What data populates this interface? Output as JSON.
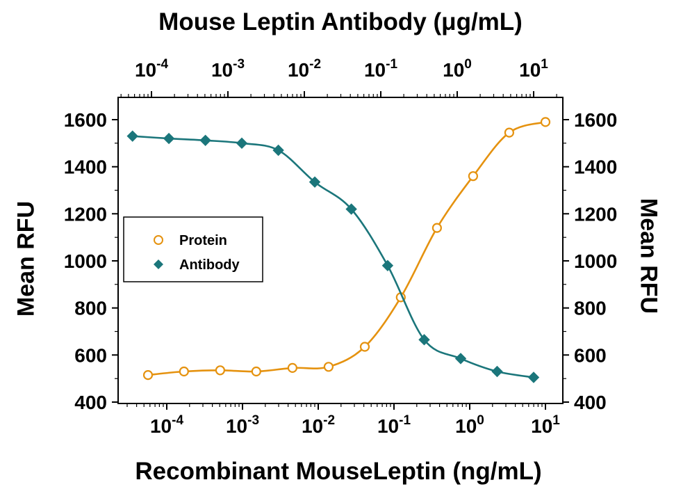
{
  "chart_data": {
    "type": "scatter",
    "title_top": "Mouse Leptin Antibody (μg/mL)",
    "title_bottom": "Recombinant MouseLeptin (ng/mL)",
    "ylabel_left": "Mean RFU",
    "ylabel_right": "Mean RFU",
    "y_ticks": [
      400,
      600,
      800,
      1000,
      1200,
      1400,
      1600
    ],
    "ylim": [
      400,
      1695
    ],
    "x_tick_exponents": [
      -4,
      -3,
      -2,
      -1,
      0,
      1
    ],
    "top_axis": {
      "scale": "log",
      "units": "μg/mL",
      "decades": [
        -4,
        -3,
        -2,
        -1,
        0,
        1
      ]
    },
    "bottom_axis": {
      "scale": "log",
      "units": "ng/mL",
      "decades": [
        -4,
        -3,
        -2,
        -1,
        0,
        1
      ]
    },
    "grid": false,
    "legend": {
      "position": "left-middle",
      "items": [
        {
          "label": "Protein",
          "marker": "circle-open",
          "color": "#E5920F"
        },
        {
          "label": "Antibody",
          "marker": "diamond",
          "color": "#1B767B"
        }
      ]
    },
    "series": [
      {
        "name": "Protein",
        "axis": "bottom",
        "marker": "circle-open",
        "color": "#E5920F",
        "x": [
          5.65e-05,
          0.000169,
          0.000508,
          0.00152,
          0.00457,
          0.0137,
          0.0412,
          0.123,
          0.37,
          1.11,
          3.33,
          10
        ],
        "y": [
          515,
          530,
          535,
          530,
          545,
          550,
          635,
          845,
          1140,
          1360,
          1545,
          1590
        ]
      },
      {
        "name": "Antibody",
        "axis": "top",
        "marker": "diamond",
        "color": "#1B767B",
        "x": [
          5.65e-05,
          0.000169,
          0.000508,
          0.00152,
          0.00457,
          0.0137,
          0.0412,
          0.123,
          0.37,
          1.11,
          3.33,
          10
        ],
        "y": [
          1530,
          1520,
          1512,
          1500,
          1470,
          1335,
          1220,
          980,
          665,
          585,
          530,
          505
        ]
      }
    ]
  }
}
